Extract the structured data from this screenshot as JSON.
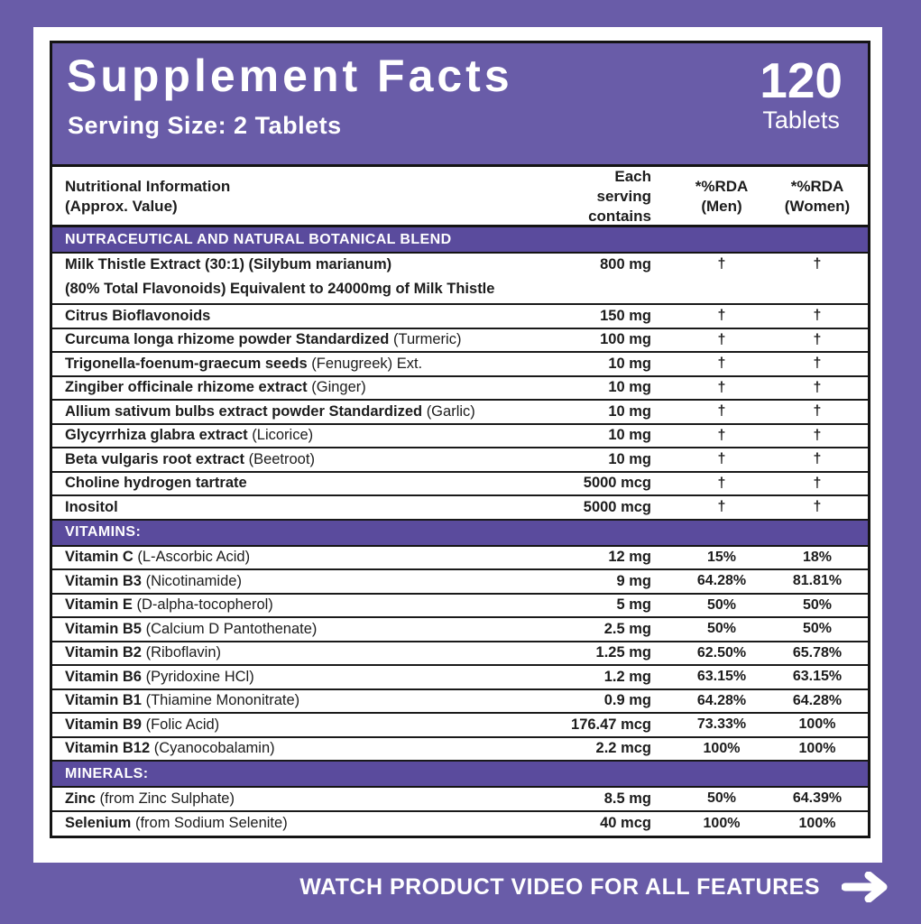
{
  "header": {
    "title": "Supplement Facts",
    "serving_size": "Serving Size: 2 Tablets",
    "count": "120",
    "count_unit": "Tablets"
  },
  "table": {
    "columns": {
      "info_line1": "Nutritional Information",
      "info_line2": "(Approx. Value)",
      "serving_line1": "Each serving",
      "serving_line2": "contains",
      "men_line1": "*%RDA",
      "men_line2": "(Men)",
      "women_line1": "*%RDA",
      "women_line2": "(Women)"
    },
    "sections": [
      {
        "title": "NUTRACEUTICAL AND NATURAL BOTANICAL BLEND",
        "rows": [
          {
            "name": "Milk Thistle Extract (30:1) (Silybum marianum)",
            "note": "",
            "line2": "(80% Total Flavonoids) Equivalent to 24000mg of Milk Thistle",
            "amount": "800 mg",
            "men": "†",
            "women": "†"
          },
          {
            "name": "Citrus Bioflavonoids",
            "note": "",
            "amount": "150 mg",
            "men": "†",
            "women": "†"
          },
          {
            "name": "Curcuma longa rhizome powder Standardized",
            "note": "(Turmeric)",
            "amount": "100 mg",
            "men": "†",
            "women": "†"
          },
          {
            "name": "Trigonella-foenum-graecum seeds",
            "note": "(Fenugreek) Ext.",
            "amount": "10 mg",
            "men": "†",
            "women": "†"
          },
          {
            "name": "Zingiber officinale rhizome extract",
            "note": "(Ginger)",
            "amount": "10 mg",
            "men": "†",
            "women": "†"
          },
          {
            "name": "Allium sativum bulbs extract powder Standardized",
            "note": "(Garlic)",
            "amount": "10 mg",
            "men": "†",
            "women": "†"
          },
          {
            "name": "Glycyrrhiza glabra extract",
            "note": "(Licorice)",
            "amount": "10 mg",
            "men": "†",
            "women": "†"
          },
          {
            "name": "Beta vulgaris root extract",
            "note": "(Beetroot)",
            "amount": "10 mg",
            "men": "†",
            "women": "†"
          },
          {
            "name": "Choline hydrogen tartrate",
            "note": "",
            "amount": "5000 mcg",
            "men": "†",
            "women": "†"
          },
          {
            "name": "Inositol",
            "note": "",
            "amount": "5000 mcg",
            "men": "†",
            "women": "†"
          }
        ]
      },
      {
        "title": "VITAMINS:",
        "rows": [
          {
            "name": "Vitamin C",
            "note": "(L-Ascorbic Acid)",
            "amount": "12 mg",
            "men": "15%",
            "women": "18%"
          },
          {
            "name": "Vitamin B3",
            "note": "(Nicotinamide)",
            "amount": "9 mg",
            "men": "64.28%",
            "women": "81.81%"
          },
          {
            "name": "Vitamin E",
            "note": "(D-alpha-tocopherol)",
            "amount": "5 mg",
            "men": "50%",
            "women": "50%"
          },
          {
            "name": "Vitamin B5",
            "note": "(Calcium D Pantothenate)",
            "amount": "2.5 mg",
            "men": "50%",
            "women": "50%"
          },
          {
            "name": "Vitamin B2",
            "note": "(Riboflavin)",
            "amount": "1.25 mg",
            "men": "62.50%",
            "women": "65.78%"
          },
          {
            "name": "Vitamin B6",
            "note": "(Pyridoxine HCl)",
            "amount": "1.2 mg",
            "men": "63.15%",
            "women": "63.15%"
          },
          {
            "name": "Vitamin B1",
            "note": "(Thiamine Mononitrate)",
            "amount": "0.9 mg",
            "men": "64.28%",
            "women": "64.28%"
          },
          {
            "name": "Vitamin B9",
            "note": "(Folic Acid)",
            "amount": "176.47 mcg",
            "men": "73.33%",
            "women": "100%"
          },
          {
            "name": "Vitamin B12",
            "note": "(Cyanocobalamin)",
            "amount": "2.2 mcg",
            "men": "100%",
            "women": "100%"
          }
        ]
      },
      {
        "title": "MINERALS:",
        "rows": [
          {
            "name": "Zinc",
            "note": "(from Zinc Sulphate)",
            "amount": "8.5 mg",
            "men": "50%",
            "women": "64.39%"
          },
          {
            "name": "Selenium",
            "note": "(from Sodium Selenite)",
            "amount": "40 mcg",
            "men": "100%",
            "women": "100%"
          }
        ]
      }
    ]
  },
  "footer": {
    "label": "WATCH PRODUCT VIDEO FOR ALL FEATURES",
    "arrow_icon": "arrow-right-icon"
  },
  "colors": {
    "background": "#695CA8",
    "panel_header": "#695CA8",
    "section_band": "#5A4B9D",
    "border": "#141414",
    "text": "#1C1C1C",
    "white": "#FFFFFF"
  }
}
